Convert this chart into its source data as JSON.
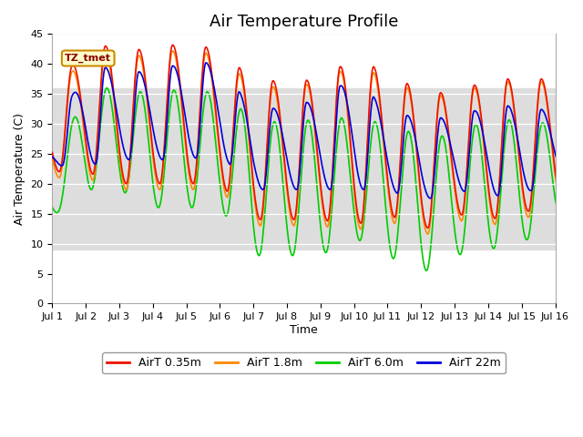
{
  "title": "Air Temperature Profile",
  "ylabel": "Air Temperature (C)",
  "xlabel": "Time",
  "ylim": [
    0,
    45
  ],
  "yticks": [
    0,
    5,
    10,
    15,
    20,
    25,
    30,
    35,
    40,
    45
  ],
  "x_labels": [
    "Jul 1",
    "Jul 2",
    "Jul 3",
    "Jul 4",
    "Jul 5",
    "Jul 6",
    "Jul 7",
    "Jul 8",
    "Jul 9",
    "Jul 10",
    "Jul 11",
    "Jul 12",
    "Jul 13",
    "Jul 14",
    "Jul 15",
    "Jul 16"
  ],
  "shaded_band": [
    9,
    36
  ],
  "tz_label": "TZ_tmet",
  "legend_entries": [
    "AirT 0.35m",
    "AirT 1.8m",
    "AirT 6.0m",
    "AirT 22m"
  ],
  "line_colors": [
    "#ee1100",
    "#ff8800",
    "#00cc00",
    "#0000dd"
  ],
  "background_color": "#ffffff",
  "plot_bg_color": "#ffffff",
  "band_color": "#dddddd",
  "title_fontsize": 13,
  "axis_fontsize": 9,
  "tick_fontsize": 8,
  "legend_fontsize": 9
}
